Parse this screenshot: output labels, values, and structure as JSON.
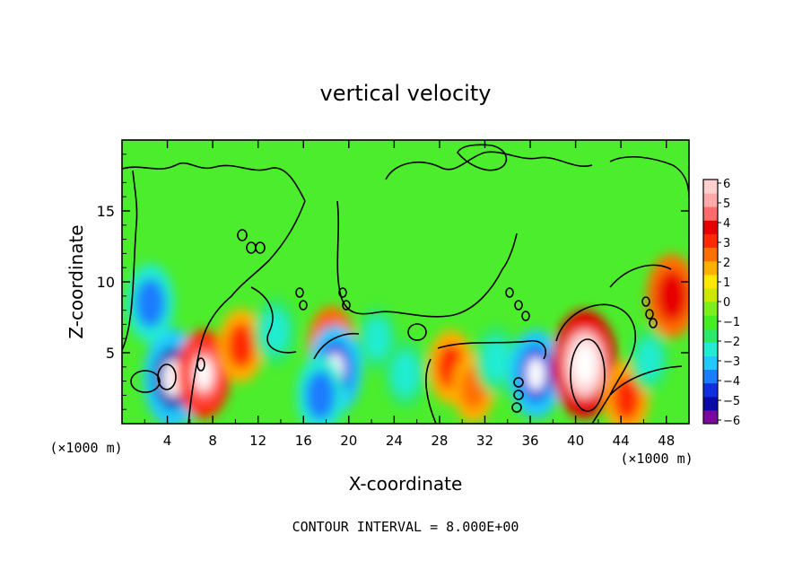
{
  "chart_data": {
    "type": "heatmap",
    "title": "vertical velocity",
    "xlabel": "X-coordinate",
    "ylabel": "Z-coordinate",
    "x_unit": "(×1000 m)",
    "z_unit": "(×1000 m)",
    "xlim": [
      0,
      50
    ],
    "ylim": [
      0,
      20
    ],
    "x_ticks": [
      "4",
      "8",
      "12",
      "16",
      "20",
      "24",
      "28",
      "32",
      "36",
      "40",
      "44",
      "48"
    ],
    "y_ticks": [
      "5",
      "10",
      "15"
    ],
    "colorbar": {
      "ticks": [
        "6",
        "5",
        "4",
        "3",
        "2",
        "1",
        "0",
        "−1",
        "−2",
        "−3",
        "−4",
        "−5",
        "−6"
      ],
      "range": [
        -6,
        6
      ],
      "colors": [
        "#7a0a9e",
        "#0a0aa8",
        "#1030e0",
        "#1a7cff",
        "#22c8ff",
        "#22ecd2",
        "#2ee86a",
        "#44ee22",
        "#7cf01c",
        "#cce800",
        "#ffe800",
        "#ffb000",
        "#ff7000",
        "#ff2a00",
        "#e80000",
        "#ff6a6a",
        "#ffaaaa",
        "#ffd0d0"
      ]
    },
    "field_features": [
      {
        "x": 4.5,
        "z": 3.2,
        "w": -6
      },
      {
        "x": 2.5,
        "z": 8.5,
        "w": -4
      },
      {
        "x": 7.2,
        "z": 3.5,
        "w": 5
      },
      {
        "x": 10.5,
        "z": 5.5,
        "w": 3.5
      },
      {
        "x": 13.5,
        "z": 6.5,
        "w": -3
      },
      {
        "x": 18.5,
        "z": 5.5,
        "w": 4
      },
      {
        "x": 18.8,
        "z": 3.8,
        "w": -5
      },
      {
        "x": 17.5,
        "z": 2.0,
        "w": -4
      },
      {
        "x": 22.5,
        "z": 6.0,
        "w": -2.5
      },
      {
        "x": 25.0,
        "z": 3.5,
        "w": -3
      },
      {
        "x": 29.0,
        "z": 4.0,
        "w": 3.5
      },
      {
        "x": 31.0,
        "z": 2.5,
        "w": 3
      },
      {
        "x": 33.0,
        "z": 4.5,
        "w": -3
      },
      {
        "x": 36.5,
        "z": 3.5,
        "w": -5
      },
      {
        "x": 40.8,
        "z": 4.2,
        "w": 7
      },
      {
        "x": 44.5,
        "z": 1.8,
        "w": 3.5
      },
      {
        "x": 48.5,
        "z": 9.0,
        "w": 4.5
      },
      {
        "x": 46.5,
        "z": 4.5,
        "w": -2.5
      }
    ]
  },
  "footer": {
    "contour_interval": "CONTOUR INTERVAL = 8.000E+00"
  }
}
